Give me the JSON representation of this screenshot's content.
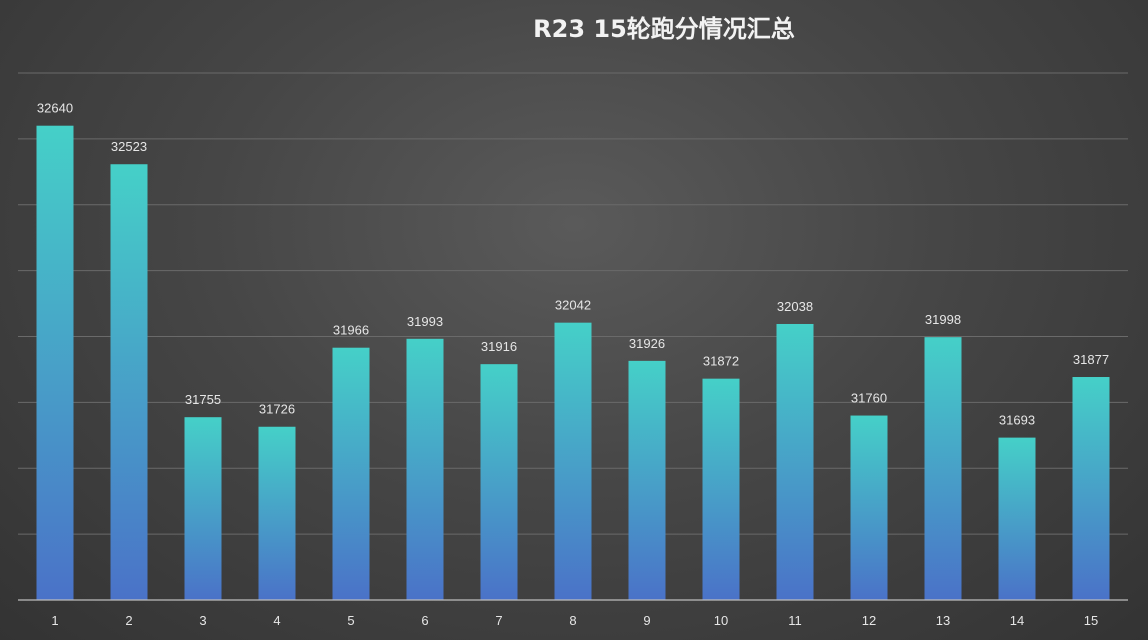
{
  "chart_data": {
    "type": "bar",
    "title": "R23 15轮跑分情况汇总",
    "xlabel": "",
    "ylabel": "",
    "categories": [
      "1",
      "2",
      "3",
      "4",
      "5",
      "6",
      "7",
      "8",
      "9",
      "10",
      "11",
      "12",
      "13",
      "14",
      "15"
    ],
    "values": [
      32640,
      32523,
      31755,
      31726,
      31966,
      31993,
      31916,
      32042,
      31926,
      31872,
      32038,
      31760,
      31998,
      31693,
      31877
    ],
    "ylim": [
      31200,
      32800
    ],
    "grid": true,
    "legend": "none",
    "data_labels": true
  },
  "colors": {
    "bar_top": "#45d0c8",
    "bar_bottom": "#4a72c8",
    "background": "#444444"
  }
}
